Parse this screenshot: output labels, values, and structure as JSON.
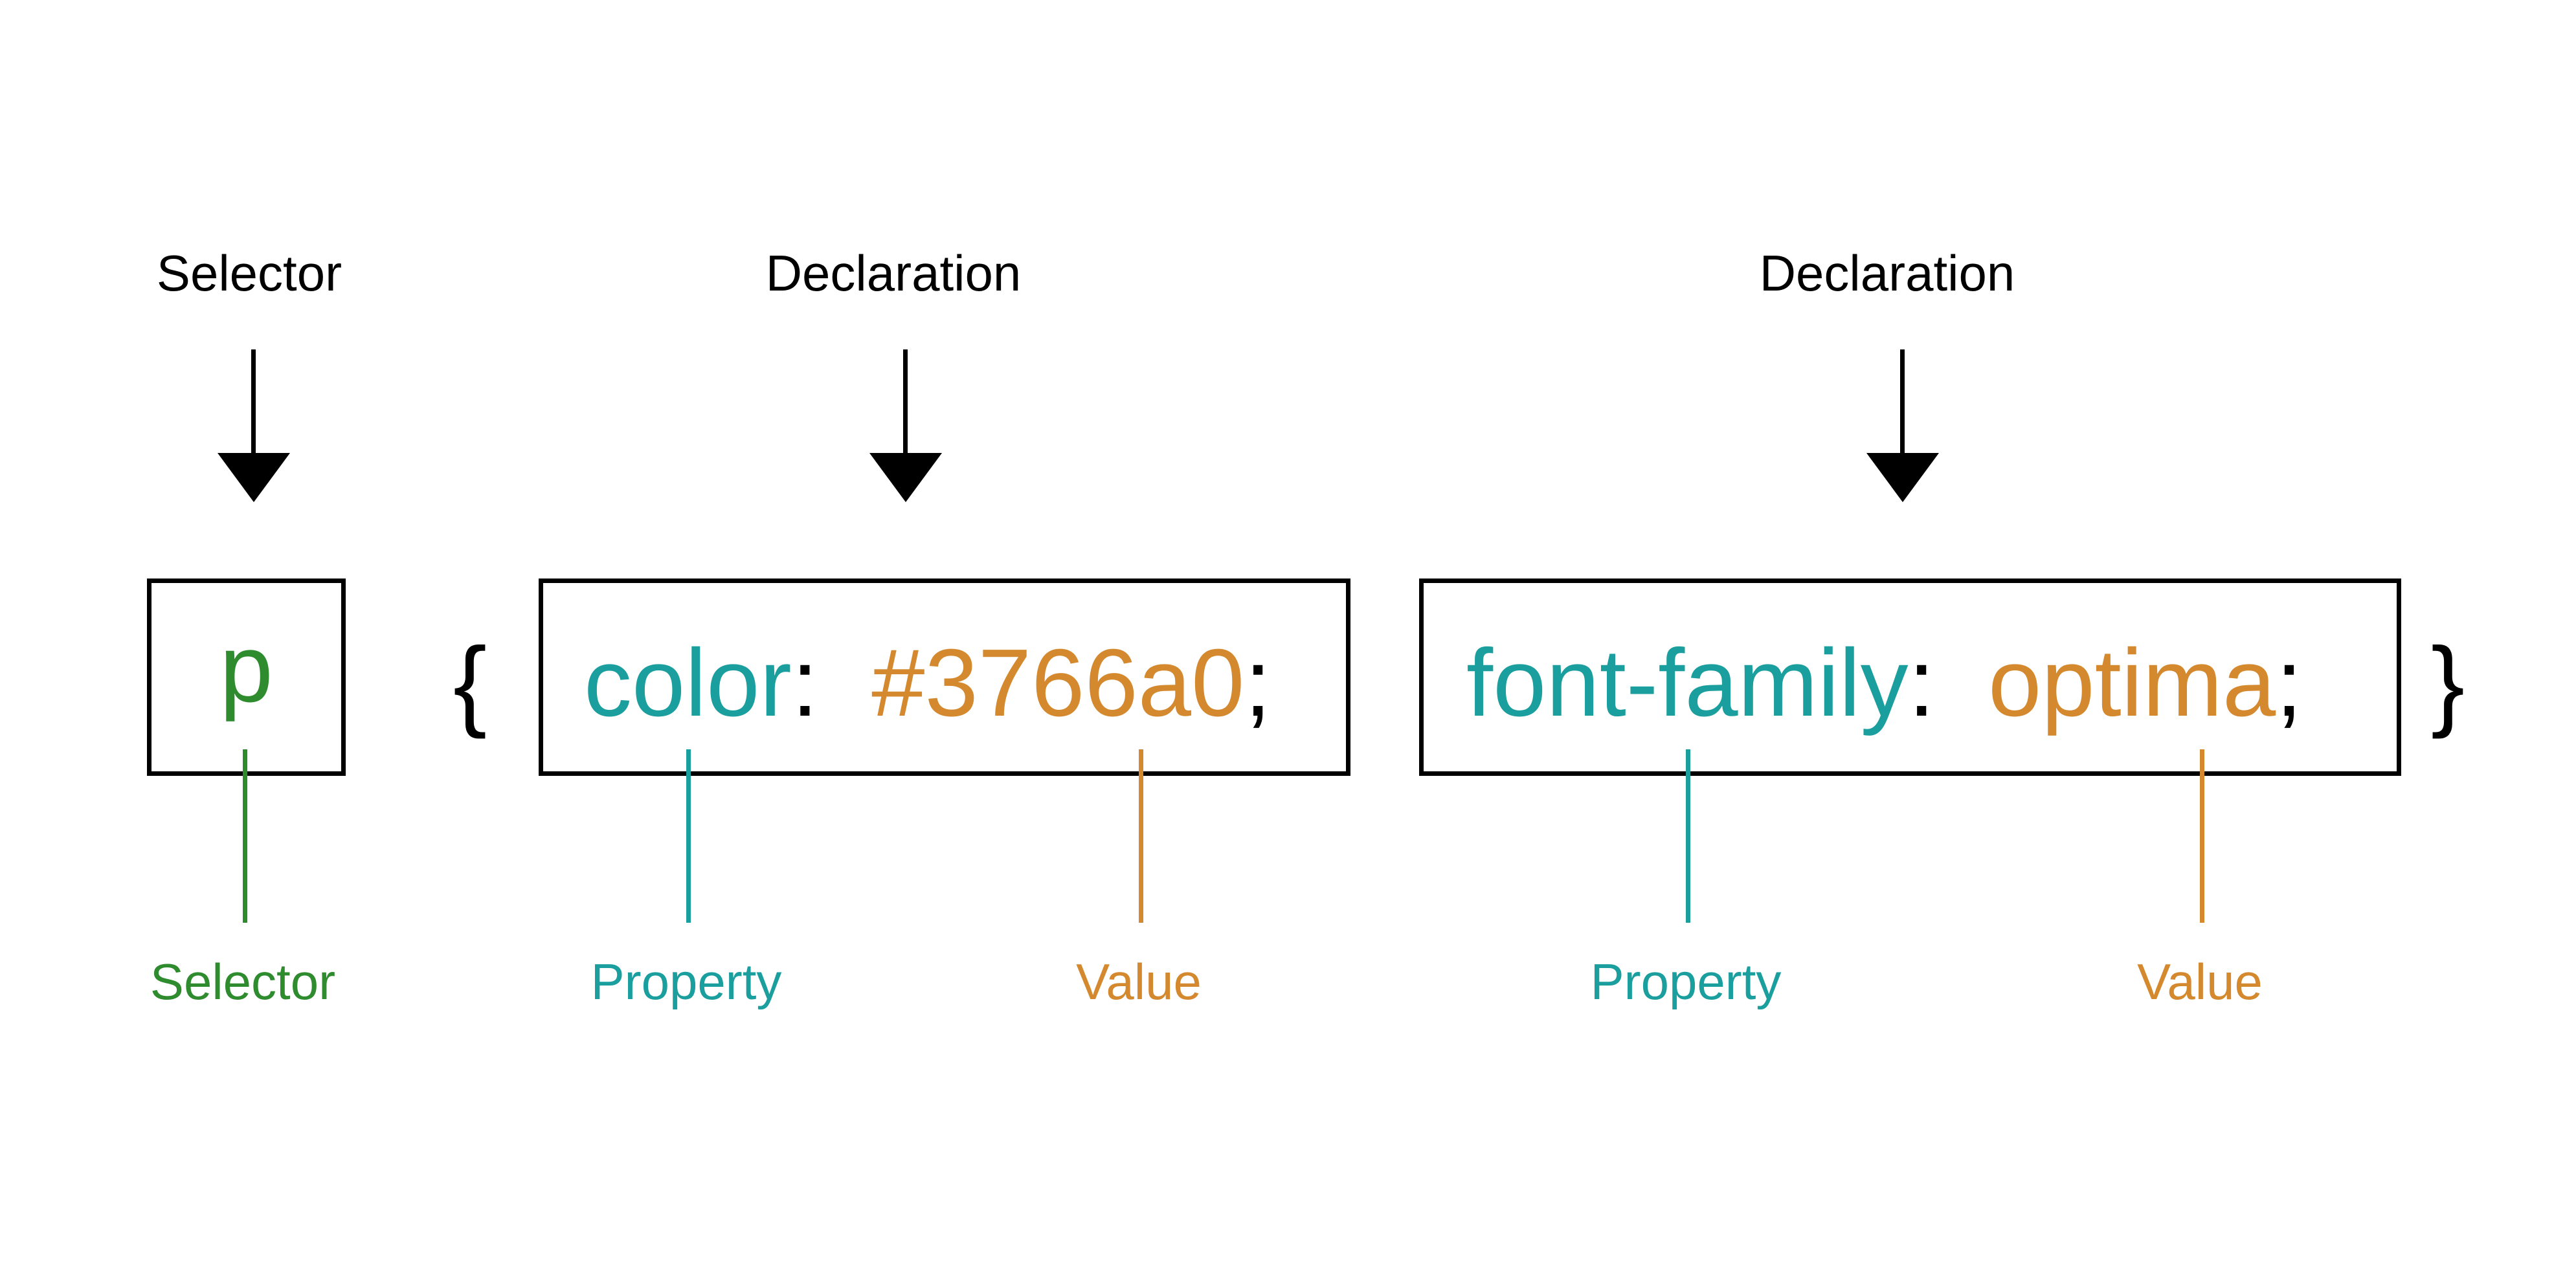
{
  "top_labels": {
    "selector": "Selector",
    "declaration_1": "Declaration",
    "declaration_2": "Declaration"
  },
  "code": {
    "selector": "p",
    "open_brace": "{",
    "close_brace": "}",
    "declaration_1": {
      "property": "color",
      "colon": ":",
      "value": "#3766a0",
      "semicolon": ";"
    },
    "declaration_2": {
      "property": "font-family",
      "colon": ":",
      "value": "optima",
      "semicolon": ";"
    }
  },
  "bottom_labels": {
    "selector": "Selector",
    "property_1": "Property",
    "value_1": "Value",
    "property_2": "Property",
    "value_2": "Value"
  },
  "colors": {
    "selector": "#2e8b2e",
    "property": "#1a9e9e",
    "value": "#d4892f",
    "text": "#000000"
  }
}
